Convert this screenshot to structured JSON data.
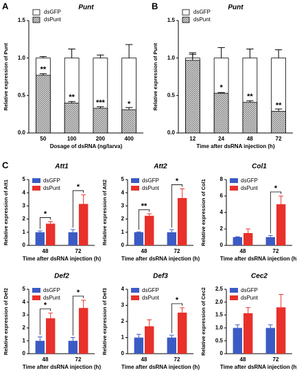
{
  "chart_data": [
    {
      "type": "bar",
      "bar_mode": "overlay",
      "panel": "A",
      "title": "Punt",
      "xlabel": "Dosage of dsRNA (ng/larva)",
      "ylabel": "Relative expression of Punt",
      "categories": [
        "50",
        "100",
        "200",
        "400"
      ],
      "ylim": [
        0,
        1.5
      ],
      "yticks": [
        {
          "value": 0,
          "label": "0.0"
        },
        0.5,
        {
          "value": 1,
          "label": "1.0"
        },
        1.5
      ],
      "series": [
        {
          "name": "dsGFP",
          "color": "#ffffff",
          "values": [
            1,
            1,
            1,
            1
          ],
          "errors": [
            0.02,
            0.12,
            0.04,
            0.18
          ]
        },
        {
          "name": "dsPunt",
          "color": "#a0a0a0",
          "values": [
            0.77,
            0.4,
            0.33,
            0.31
          ],
          "errors": [
            0.02,
            0.02,
            0.02,
            0.03
          ]
        }
      ],
      "significance": [
        "**",
        "**",
        "***",
        "*"
      ]
    },
    {
      "type": "bar",
      "bar_mode": "overlay",
      "panel": "B",
      "title": "Punt",
      "xlabel": "Time after dsRNA injection (h)",
      "ylabel": "Relative expression of Punt",
      "categories": [
        "12",
        "24",
        "48",
        "72"
      ],
      "ylim": [
        0,
        1.5
      ],
      "yticks": [
        {
          "value": 0,
          "label": "0.0"
        },
        0.5,
        {
          "value": 1,
          "label": "1.0"
        },
        1.5
      ],
      "series": [
        {
          "name": "dsGFP",
          "color": "#ffffff",
          "values": [
            1,
            1,
            1,
            1
          ],
          "errors": [
            0.07,
            0.14,
            0.12,
            0.11
          ]
        },
        {
          "name": "dsPunt",
          "color": "#a0a0a0",
          "values": [
            0.97,
            0.53,
            0.41,
            0.29
          ],
          "errors": [
            0.08,
            0.01,
            0.02,
            0.03
          ]
        }
      ],
      "significance": [
        null,
        "*",
        "**",
        "**"
      ]
    },
    {
      "type": "bar",
      "bar_mode": "grouped",
      "panel": "C",
      "title": "Att1",
      "xlabel": "Time after dsRNA injection (h)",
      "ylabel": "Relative expression of Att1",
      "categories": [
        "48",
        "72"
      ],
      "ylim": [
        0,
        5
      ],
      "yticks": [
        0,
        1,
        2,
        3,
        4,
        5
      ],
      "series": [
        {
          "name": "dsGFP",
          "color": "#3b5bc4",
          "values": [
            1.0,
            1.0
          ],
          "errors": [
            0.1,
            0.2
          ]
        },
        {
          "name": "dsPunt",
          "color": "#e8312a",
          "values": [
            1.65,
            3.15
          ],
          "errors": [
            0.15,
            0.7
          ]
        }
      ],
      "significance": [
        "*",
        "*"
      ]
    },
    {
      "type": "bar",
      "bar_mode": "grouped",
      "title": "Att2",
      "xlabel": "Time after dsRNA injection (h)",
      "ylabel": "Relative expression of Att2",
      "categories": [
        "48",
        "72"
      ],
      "ylim": [
        0,
        5
      ],
      "yticks": [
        0,
        1,
        2,
        3,
        4,
        5
      ],
      "series": [
        {
          "name": "dsGFP",
          "color": "#3b5bc4",
          "values": [
            1.0,
            1.0
          ],
          "errors": [
            0.03,
            0.2
          ]
        },
        {
          "name": "dsPunt",
          "color": "#e8312a",
          "values": [
            2.25,
            3.6
          ],
          "errors": [
            0.15,
            0.7
          ]
        }
      ],
      "significance": [
        "**",
        "*"
      ]
    },
    {
      "type": "bar",
      "bar_mode": "grouped",
      "title": "Col1",
      "xlabel": "Time after dsRNA injection (h)",
      "ylabel": "Relative expression of Col1",
      "categories": [
        "48",
        "72"
      ],
      "ylim": [
        0,
        8
      ],
      "yticks": [
        0,
        2,
        4,
        6,
        8
      ],
      "series": [
        {
          "name": "dsGFP",
          "color": "#3b5bc4",
          "values": [
            1.0,
            1.0
          ],
          "errors": [
            0.05,
            0.2
          ]
        },
        {
          "name": "dsPunt",
          "color": "#e8312a",
          "values": [
            1.5,
            5.0
          ],
          "errors": [
            0.5,
            1.0
          ]
        }
      ],
      "significance": [
        null,
        "*"
      ]
    },
    {
      "type": "bar",
      "bar_mode": "grouped",
      "title": "Def2",
      "xlabel": "Time after dsRNA injection (h)",
      "ylabel": "Relative expression of Def2",
      "categories": [
        "48",
        "72"
      ],
      "ylim": [
        0,
        5
      ],
      "yticks": [
        0,
        1,
        2,
        3,
        4,
        5
      ],
      "series": [
        {
          "name": "dsGFP",
          "color": "#3b5bc4",
          "values": [
            1.0,
            1.0
          ],
          "errors": [
            0.3,
            0.25
          ]
        },
        {
          "name": "dsPunt",
          "color": "#e8312a",
          "values": [
            2.75,
            3.55
          ],
          "errors": [
            0.4,
            0.6
          ]
        }
      ],
      "significance": [
        "*",
        "*"
      ]
    },
    {
      "type": "bar",
      "bar_mode": "grouped",
      "title": "Def3",
      "xlabel": "Time after dsRNA injection (h)",
      "ylabel": "Relative expression of Def3",
      "categories": [
        "48",
        "72"
      ],
      "ylim": [
        0,
        4
      ],
      "yticks": [
        0,
        1,
        2,
        3,
        4
      ],
      "series": [
        {
          "name": "dsGFP",
          "color": "#3b5bc4",
          "values": [
            1.0,
            1.0
          ],
          "errors": [
            0.2,
            0.15
          ]
        },
        {
          "name": "dsPunt",
          "color": "#e8312a",
          "values": [
            1.7,
            2.55
          ],
          "errors": [
            0.4,
            0.3
          ]
        }
      ],
      "significance": [
        null,
        "*"
      ]
    },
    {
      "type": "bar",
      "bar_mode": "grouped",
      "title": "Cec2",
      "xlabel": "Time after dsRNA injection (h)",
      "ylabel": "Relative expression of Cec2",
      "categories": [
        "48",
        "72"
      ],
      "ylim": [
        0,
        2.5
      ],
      "yticks": [
        0,
        0.5,
        {
          "value": 1,
          "label": "1.0"
        },
        1.5,
        {
          "value": 2,
          "label": "2.0"
        },
        2.5
      ],
      "series": [
        {
          "name": "dsGFP",
          "color": "#3b5bc4",
          "values": [
            1.0,
            1.0
          ],
          "errors": [
            0.12,
            0.12
          ]
        },
        {
          "name": "dsPunt",
          "color": "#e8312a",
          "values": [
            1.57,
            1.8
          ],
          "errors": [
            0.22,
            0.5
          ]
        }
      ],
      "significance": [
        null,
        null
      ]
    }
  ]
}
